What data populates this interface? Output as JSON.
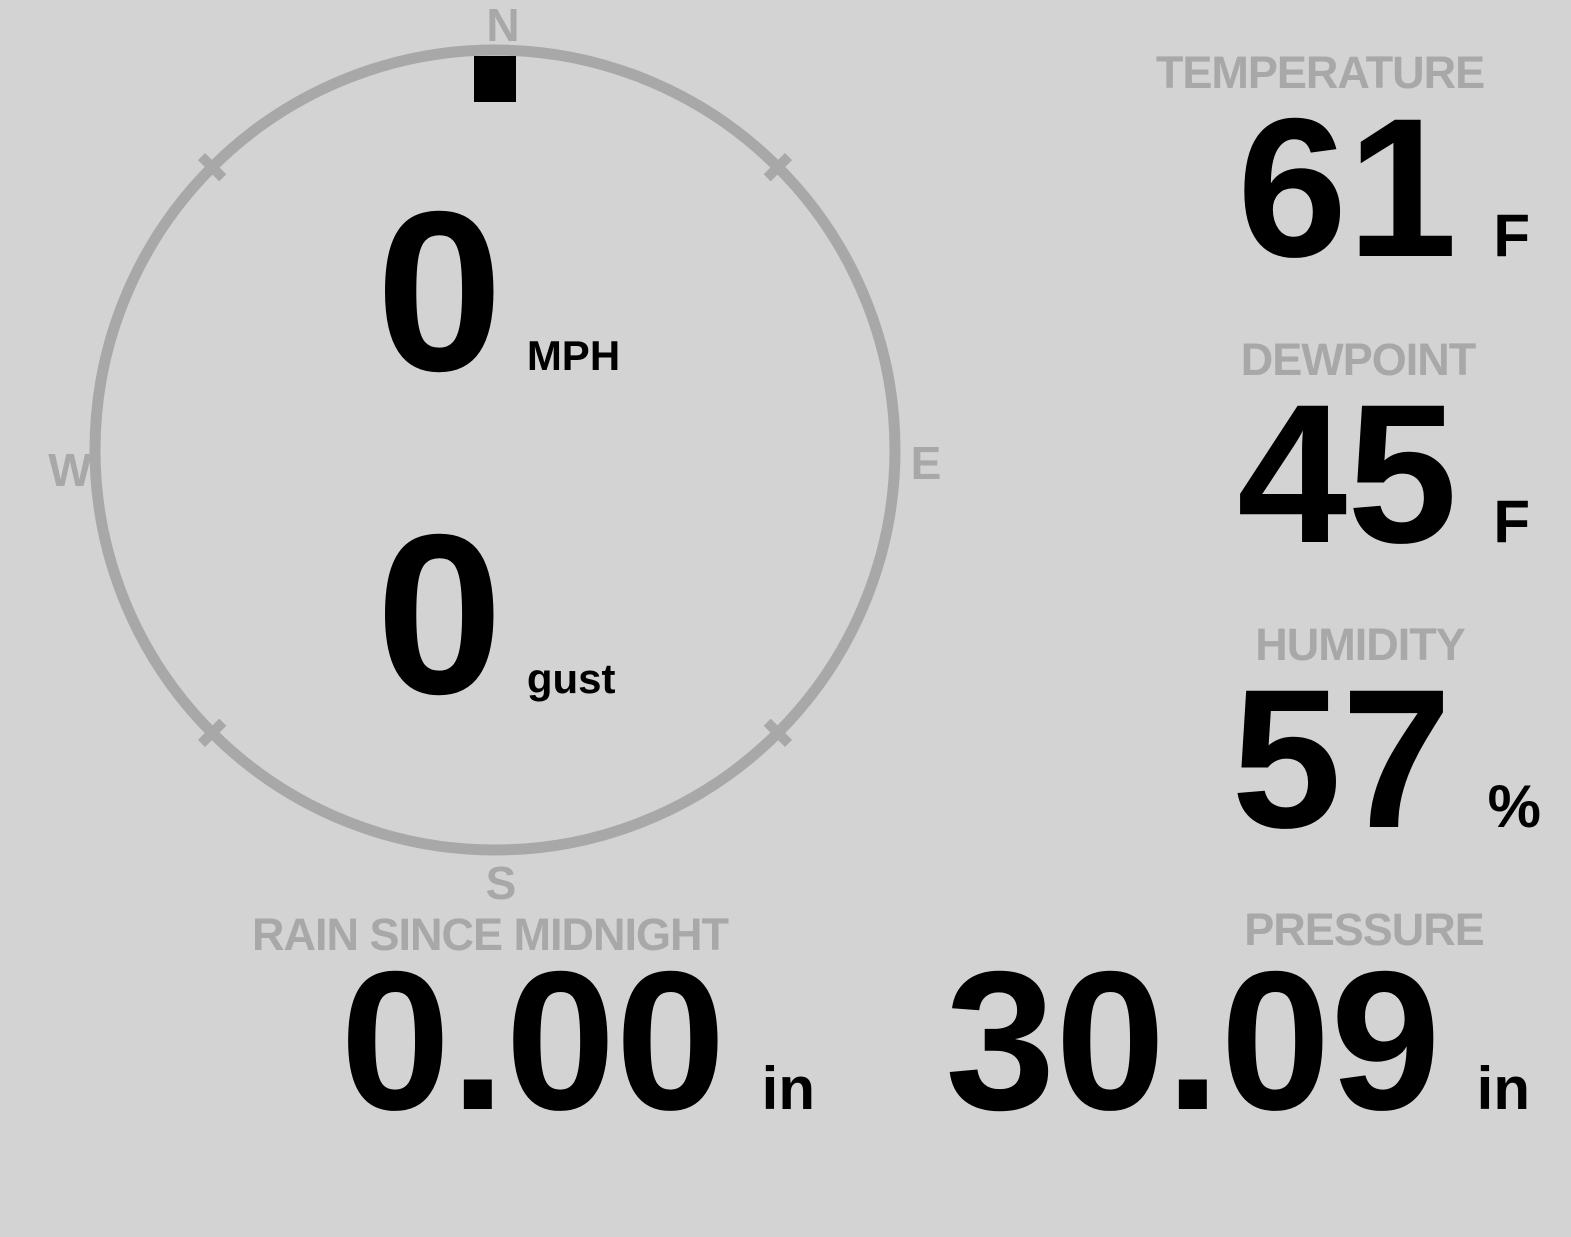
{
  "theme": {
    "background": "#d3d3d3",
    "muted_gray": "#a8a8a8",
    "value_black": "#000000"
  },
  "wind": {
    "compass": {
      "cardinals": {
        "north": "N",
        "east": "E",
        "south": "S",
        "west": "W"
      },
      "direction_deg": 0
    },
    "speed": {
      "value": "0",
      "unit": "MPH"
    },
    "gust": {
      "value": "0",
      "unit": "gust"
    }
  },
  "metrics": {
    "temperature": {
      "label": "TEMPERATURE",
      "value": "61",
      "unit": "F"
    },
    "dewpoint": {
      "label": "DEWPOINT",
      "value": "45",
      "unit": "F"
    },
    "humidity": {
      "label": "HUMIDITY",
      "value": "57",
      "unit": "%"
    },
    "rain_since_midnight": {
      "label": "RAIN SINCE MIDNIGHT",
      "value": "0.00",
      "unit": "in"
    },
    "pressure": {
      "label": "PRESSURE",
      "value": "30.09",
      "unit": "in"
    }
  }
}
